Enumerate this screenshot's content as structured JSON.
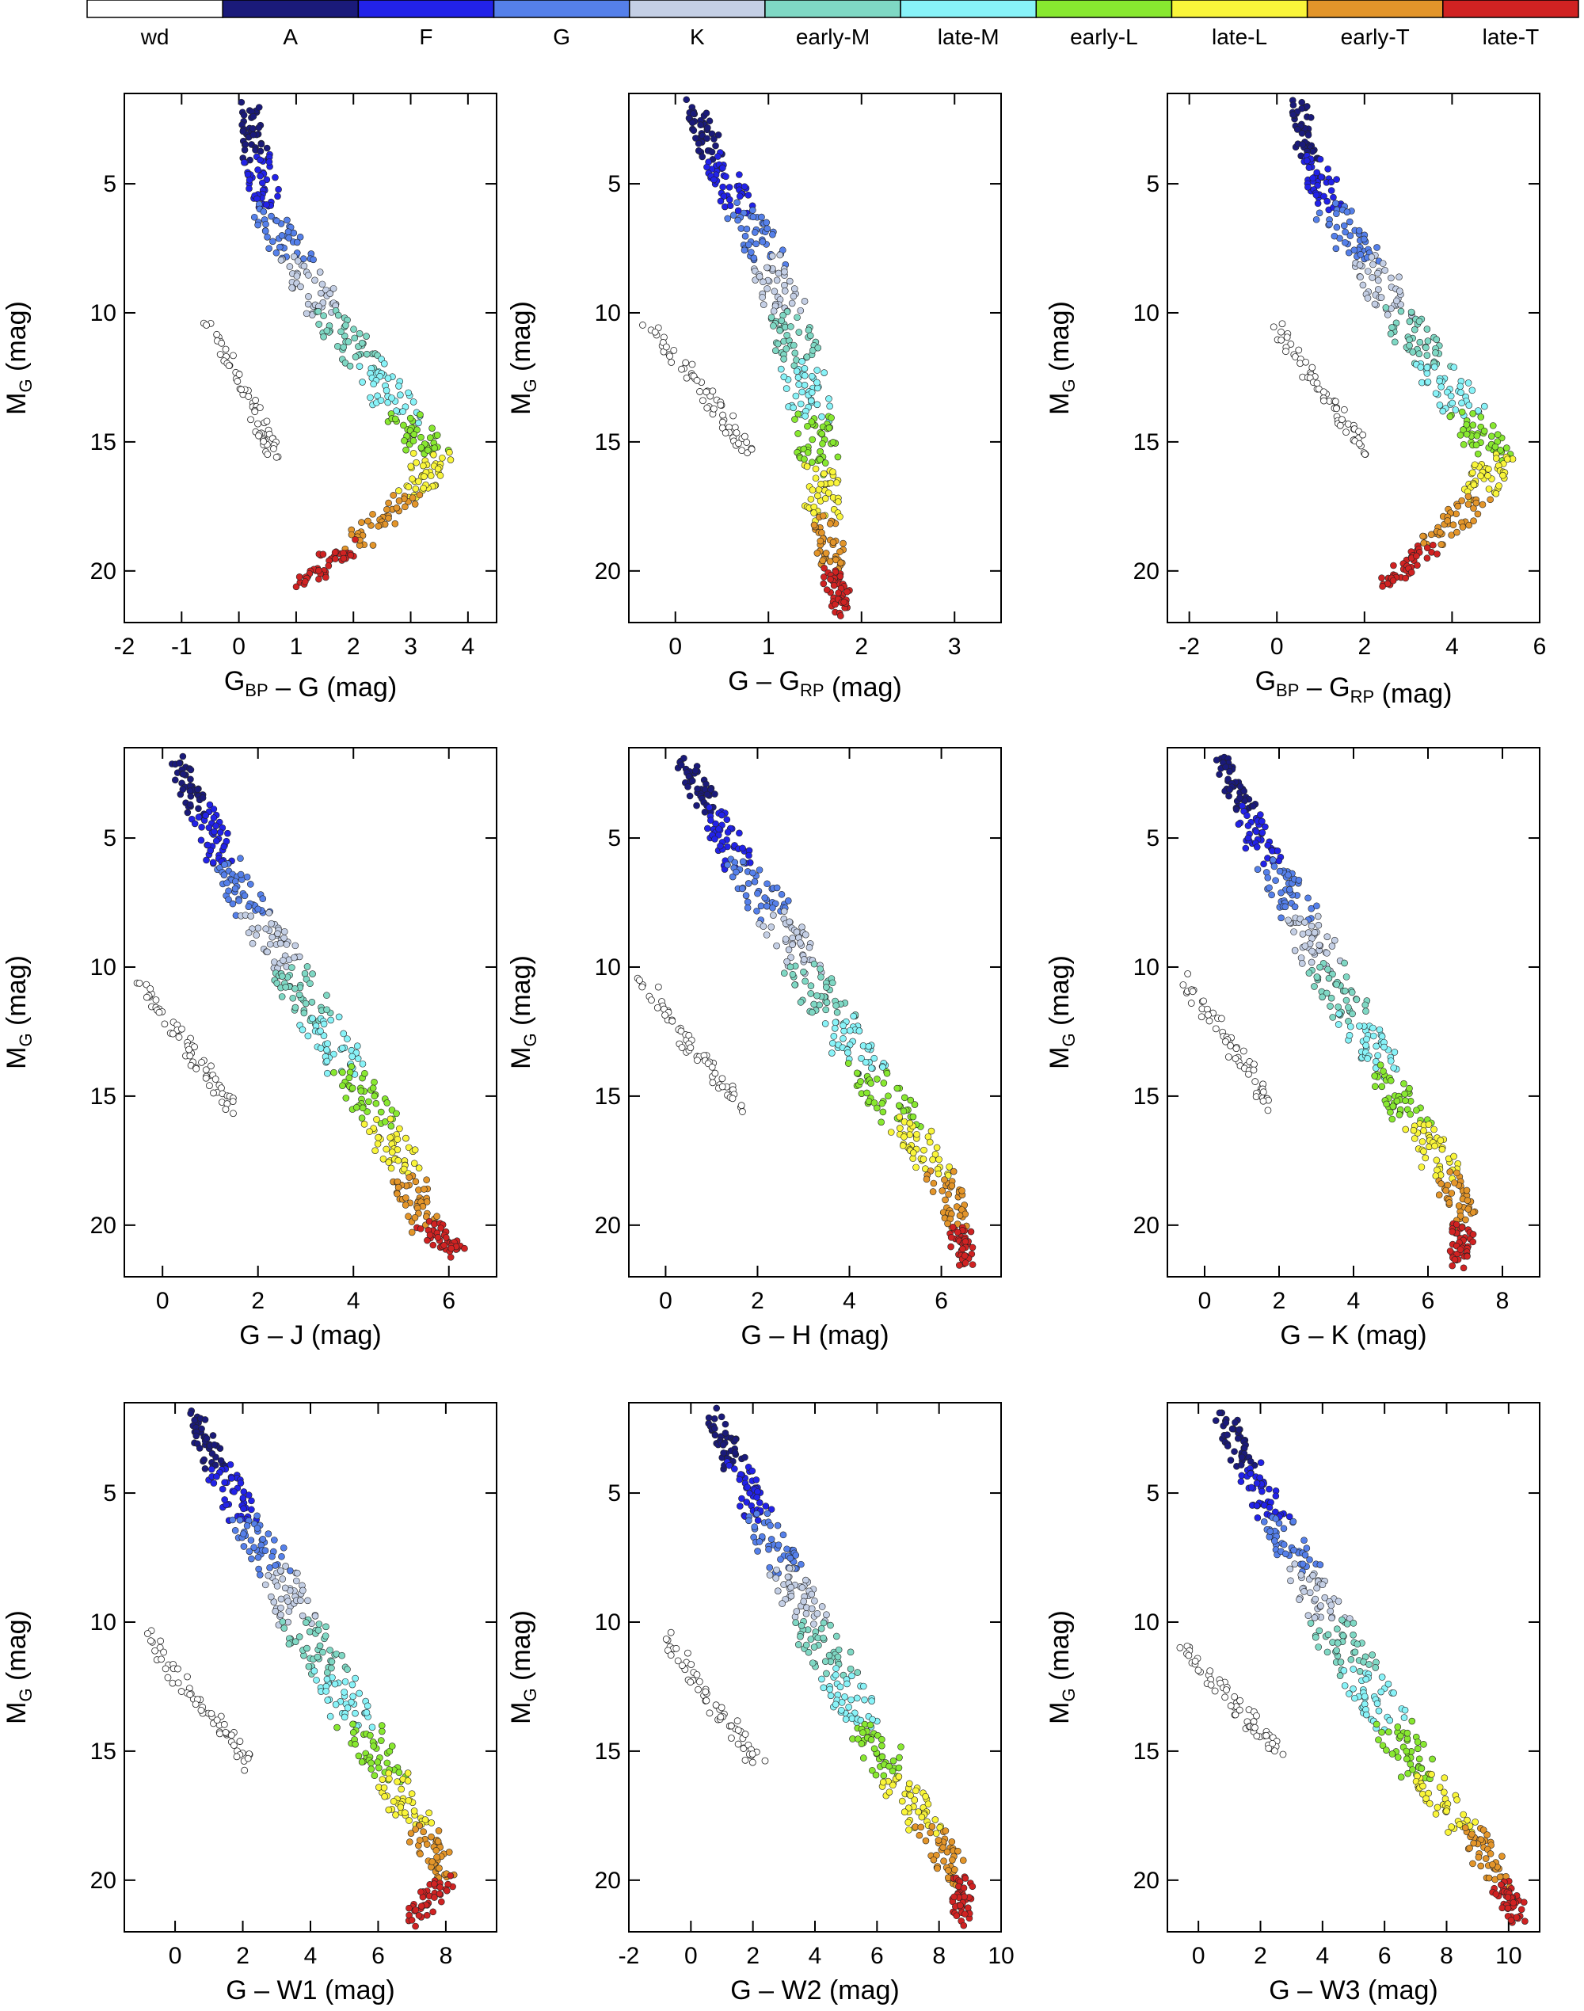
{
  "colorbar": {
    "entries": [
      {
        "label": "wd",
        "color": "#ffffff"
      },
      {
        "label": "A",
        "color": "#1a1a7a"
      },
      {
        "label": "F",
        "color": "#2222e8"
      },
      {
        "label": "G",
        "color": "#5580ea"
      },
      {
        "label": "K",
        "color": "#c4cfe5"
      },
      {
        "label": "early-M",
        "color": "#7fd8c4"
      },
      {
        "label": "late-M",
        "color": "#88f3f8"
      },
      {
        "label": "early-L",
        "color": "#88e830"
      },
      {
        "label": "late-L",
        "color": "#f9f53a"
      },
      {
        "label": "early-T",
        "color": "#e3952a"
      },
      {
        "label": "late-T",
        "color": "#d02222"
      }
    ]
  },
  "ylabel": {
    "main": "M",
    "sub": "G",
    "unit": " (mag)"
  },
  "chart_data": [
    {
      "type": "scatter",
      "id": "bp-g",
      "xlabel": {
        "pre": "G",
        "sub1": "BP",
        "mid": " – G",
        "sub2": "",
        "post": " (mag)"
      },
      "xlim": [
        -2,
        4.5
      ],
      "xticks": [
        -2,
        -1,
        0,
        1,
        2,
        3,
        4
      ],
      "ylim": [
        22,
        1.5
      ],
      "yticks": [
        5,
        10,
        15,
        20
      ],
      "sequence": [
        [
          0.2,
          2.0
        ],
        [
          0.3,
          4.0
        ],
        [
          0.5,
          6.0
        ],
        [
          1.0,
          8.0
        ],
        [
          1.5,
          10.0
        ],
        [
          2.2,
          12.0
        ],
        [
          2.9,
          14.0
        ],
        [
          3.4,
          15.5
        ],
        [
          3.0,
          17.0
        ],
        [
          2.0,
          19.0
        ],
        [
          1.0,
          20.5
        ]
      ],
      "wd": [
        [
          -0.5,
          10.5
        ],
        [
          0.0,
          12.5
        ],
        [
          0.4,
          14.5
        ],
        [
          0.6,
          15.5
        ]
      ]
    },
    {
      "type": "scatter",
      "id": "g-rp",
      "xlabel": {
        "pre": "G – G",
        "sub1": "RP",
        "mid": "",
        "sub2": "",
        "post": " (mag)"
      },
      "xlim": [
        -0.5,
        3.5
      ],
      "xticks": [
        0,
        1,
        2,
        3
      ],
      "ylim": [
        22,
        1.5
      ],
      "yticks": [
        5,
        10,
        15,
        20
      ],
      "sequence": [
        [
          0.2,
          2.0
        ],
        [
          0.4,
          4.0
        ],
        [
          0.7,
          6.0
        ],
        [
          1.0,
          8.0
        ],
        [
          1.2,
          10.0
        ],
        [
          1.35,
          12.0
        ],
        [
          1.45,
          14.0
        ],
        [
          1.55,
          16.0
        ],
        [
          1.6,
          18.0
        ],
        [
          1.7,
          20.0
        ],
        [
          1.8,
          21.5
        ]
      ],
      "wd": [
        [
          -0.3,
          10.5
        ],
        [
          0.2,
          12.5
        ],
        [
          0.5,
          14.0
        ],
        [
          0.8,
          15.5
        ]
      ]
    },
    {
      "type": "scatter",
      "id": "bp-rp",
      "xlabel": {
        "pre": "G",
        "sub1": "BP",
        "mid": " – G",
        "sub2": "RP",
        "post": " (mag)"
      },
      "xlim": [
        -2.5,
        6
      ],
      "xticks": [
        -2,
        0,
        2,
        4,
        6
      ],
      "ylim": [
        22,
        1.5
      ],
      "yticks": [
        5,
        10,
        15,
        20
      ],
      "sequence": [
        [
          0.5,
          2.0
        ],
        [
          0.8,
          4.0
        ],
        [
          1.2,
          6.0
        ],
        [
          2.0,
          8.0
        ],
        [
          2.8,
          10.0
        ],
        [
          3.6,
          12.0
        ],
        [
          4.4,
          14.0
        ],
        [
          5.0,
          15.5
        ],
        [
          4.6,
          17.0
        ],
        [
          3.5,
          19.0
        ],
        [
          2.5,
          20.5
        ]
      ],
      "wd": [
        [
          0.0,
          10.5
        ],
        [
          0.8,
          12.5
        ],
        [
          1.5,
          14.0
        ],
        [
          2.0,
          15.5
        ]
      ]
    },
    {
      "type": "scatter",
      "id": "g-j",
      "xlabel": {
        "pre": "G – J",
        "sub1": "",
        "mid": "",
        "sub2": "",
        "post": " (mag)"
      },
      "xlim": [
        -0.8,
        7
      ],
      "xticks": [
        0,
        2,
        4,
        6
      ],
      "ylim": [
        22,
        1.5
      ],
      "yticks": [
        5,
        10,
        15,
        20
      ],
      "sequence": [
        [
          0.3,
          2.0
        ],
        [
          0.8,
          4.0
        ],
        [
          1.3,
          6.0
        ],
        [
          2.0,
          8.0
        ],
        [
          2.6,
          10.0
        ],
        [
          3.2,
          12.0
        ],
        [
          3.9,
          14.0
        ],
        [
          4.6,
          16.0
        ],
        [
          5.1,
          18.0
        ],
        [
          5.5,
          20.0
        ],
        [
          6.2,
          21.0
        ]
      ],
      "wd": [
        [
          -0.5,
          10.5
        ],
        [
          0.3,
          12.5
        ],
        [
          0.9,
          14.0
        ],
        [
          1.5,
          15.5
        ]
      ]
    },
    {
      "type": "scatter",
      "id": "g-h",
      "xlabel": {
        "pre": "G – H",
        "sub1": "",
        "mid": "",
        "sub2": "",
        "post": " (mag)"
      },
      "xlim": [
        -0.8,
        7.3
      ],
      "xticks": [
        0,
        2,
        4,
        6
      ],
      "ylim": [
        22,
        1.5
      ],
      "yticks": [
        5,
        10,
        15,
        20
      ],
      "sequence": [
        [
          0.4,
          2.0
        ],
        [
          1.0,
          4.0
        ],
        [
          1.6,
          6.0
        ],
        [
          2.4,
          8.0
        ],
        [
          3.0,
          10.0
        ],
        [
          3.7,
          12.0
        ],
        [
          4.4,
          14.0
        ],
        [
          5.2,
          16.0
        ],
        [
          5.9,
          18.0
        ],
        [
          6.4,
          20.0
        ],
        [
          6.5,
          21.5
        ]
      ],
      "wd": [
        [
          -0.5,
          10.5
        ],
        [
          0.3,
          12.5
        ],
        [
          1.0,
          14.0
        ],
        [
          1.7,
          15.5
        ]
      ]
    },
    {
      "type": "scatter",
      "id": "g-k",
      "xlabel": {
        "pre": "G – K",
        "sub1": "",
        "mid": "",
        "sub2": "",
        "post": " (mag)"
      },
      "xlim": [
        -1,
        9
      ],
      "xticks": [
        0,
        2,
        4,
        6,
        8
      ],
      "ylim": [
        22,
        1.5
      ],
      "yticks": [
        5,
        10,
        15,
        20
      ],
      "sequence": [
        [
          0.5,
          2.0
        ],
        [
          1.1,
          4.0
        ],
        [
          1.8,
          6.0
        ],
        [
          2.6,
          8.0
        ],
        [
          3.2,
          10.0
        ],
        [
          4.0,
          12.0
        ],
        [
          4.8,
          14.0
        ],
        [
          5.7,
          16.0
        ],
        [
          6.5,
          18.0
        ],
        [
          7.0,
          20.0
        ],
        [
          6.8,
          21.5
        ]
      ],
      "wd": [
        [
          -0.5,
          10.5
        ],
        [
          0.4,
          12.5
        ],
        [
          1.2,
          14.0
        ],
        [
          1.8,
          15.5
        ]
      ]
    },
    {
      "type": "scatter",
      "id": "g-w1",
      "xlabel": {
        "pre": "G – W1",
        "sub1": "",
        "mid": "",
        "sub2": "",
        "post": " (mag)"
      },
      "xlim": [
        -1.5,
        9.5
      ],
      "xticks": [
        0,
        2,
        4,
        6,
        8
      ],
      "ylim": [
        22,
        1.5
      ],
      "yticks": [
        5,
        10,
        15,
        20
      ],
      "sequence": [
        [
          0.5,
          2.0
        ],
        [
          1.3,
          4.0
        ],
        [
          2.1,
          6.0
        ],
        [
          3.0,
          8.0
        ],
        [
          3.7,
          10.0
        ],
        [
          4.6,
          12.0
        ],
        [
          5.4,
          14.0
        ],
        [
          6.3,
          16.0
        ],
        [
          7.3,
          18.0
        ],
        [
          8.0,
          20.0
        ],
        [
          7.0,
          21.5
        ]
      ],
      "wd": [
        [
          -0.8,
          10.5
        ],
        [
          0.3,
          12.5
        ],
        [
          1.3,
          14.0
        ],
        [
          2.2,
          15.5
        ]
      ]
    },
    {
      "type": "scatter",
      "id": "g-w2",
      "xlabel": {
        "pre": "G – W2",
        "sub1": "",
        "mid": "",
        "sub2": "",
        "post": " (mag)"
      },
      "xlim": [
        -2,
        10
      ],
      "xticks": [
        -2,
        0,
        2,
        4,
        6,
        8,
        10
      ],
      "ylim": [
        22,
        1.5
      ],
      "yticks": [
        5,
        10,
        15,
        20
      ],
      "sequence": [
        [
          0.8,
          2.0
        ],
        [
          1.5,
          4.0
        ],
        [
          2.3,
          6.0
        ],
        [
          3.1,
          8.0
        ],
        [
          3.8,
          10.0
        ],
        [
          4.7,
          12.0
        ],
        [
          5.6,
          14.0
        ],
        [
          6.6,
          16.0
        ],
        [
          7.6,
          18.0
        ],
        [
          8.7,
          20.0
        ],
        [
          8.8,
          21.5
        ]
      ],
      "wd": [
        [
          -0.8,
          10.5
        ],
        [
          0.3,
          12.5
        ],
        [
          1.3,
          14.0
        ],
        [
          2.2,
          15.5
        ]
      ]
    },
    {
      "type": "scatter",
      "id": "g-w3",
      "xlabel": {
        "pre": "G – W3",
        "sub1": "",
        "mid": "",
        "sub2": "",
        "post": " (mag)"
      },
      "xlim": [
        -1,
        11
      ],
      "xticks": [
        0,
        2,
        4,
        6,
        8,
        10
      ],
      "ylim": [
        22,
        1.5
      ],
      "yticks": [
        5,
        10,
        15,
        20
      ],
      "sequence": [
        [
          0.8,
          2.0
        ],
        [
          1.6,
          4.0
        ],
        [
          2.5,
          6.0
        ],
        [
          3.4,
          8.0
        ],
        [
          4.2,
          10.0
        ],
        [
          5.2,
          12.0
        ],
        [
          6.2,
          14.0
        ],
        [
          7.3,
          16.0
        ],
        [
          8.6,
          18.0
        ],
        [
          9.8,
          20.0
        ],
        [
          10.3,
          21.5
        ]
      ],
      "wd": [
        [
          -0.5,
          11.0
        ],
        [
          0.8,
          12.5
        ],
        [
          1.8,
          14.0
        ],
        [
          2.5,
          15.0
        ]
      ]
    }
  ]
}
